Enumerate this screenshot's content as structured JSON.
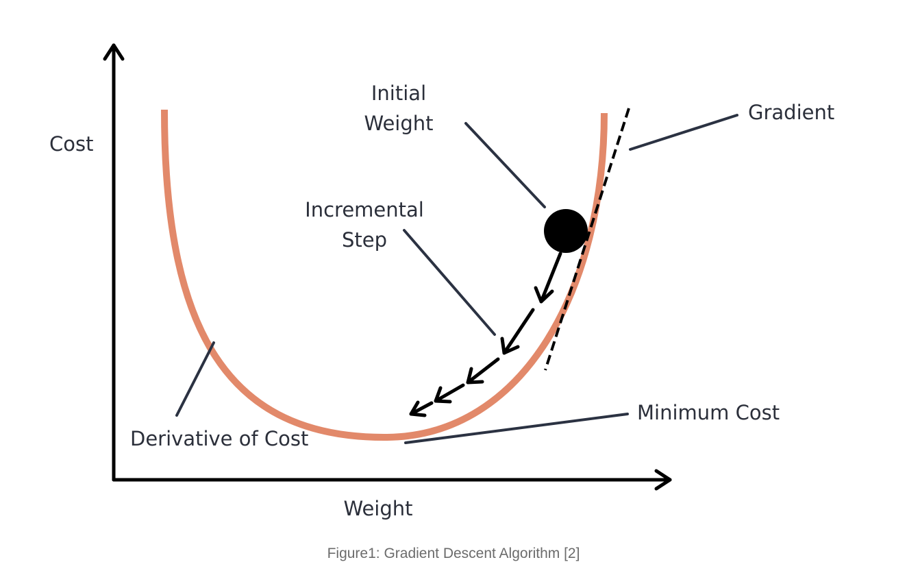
{
  "diagram": {
    "labels": {
      "y_axis": "Cost",
      "x_axis": "Weight",
      "initial_weight_line1": "Initial",
      "initial_weight_line2": "Weight",
      "gradient": "Gradient",
      "incremental_step_line1": "Incremental",
      "incremental_step_line2": "Step",
      "minimum_cost": "Minimum Cost",
      "derivative_of_cost": "Derivative of Cost"
    },
    "colors": {
      "curve": "#e2896a",
      "axes": "#000000",
      "leader_lines": "#2b3242",
      "text": "#2b2f3a",
      "ball": "#000000"
    }
  },
  "caption": "Figure1: Gradient Descent Algorithm [2]"
}
